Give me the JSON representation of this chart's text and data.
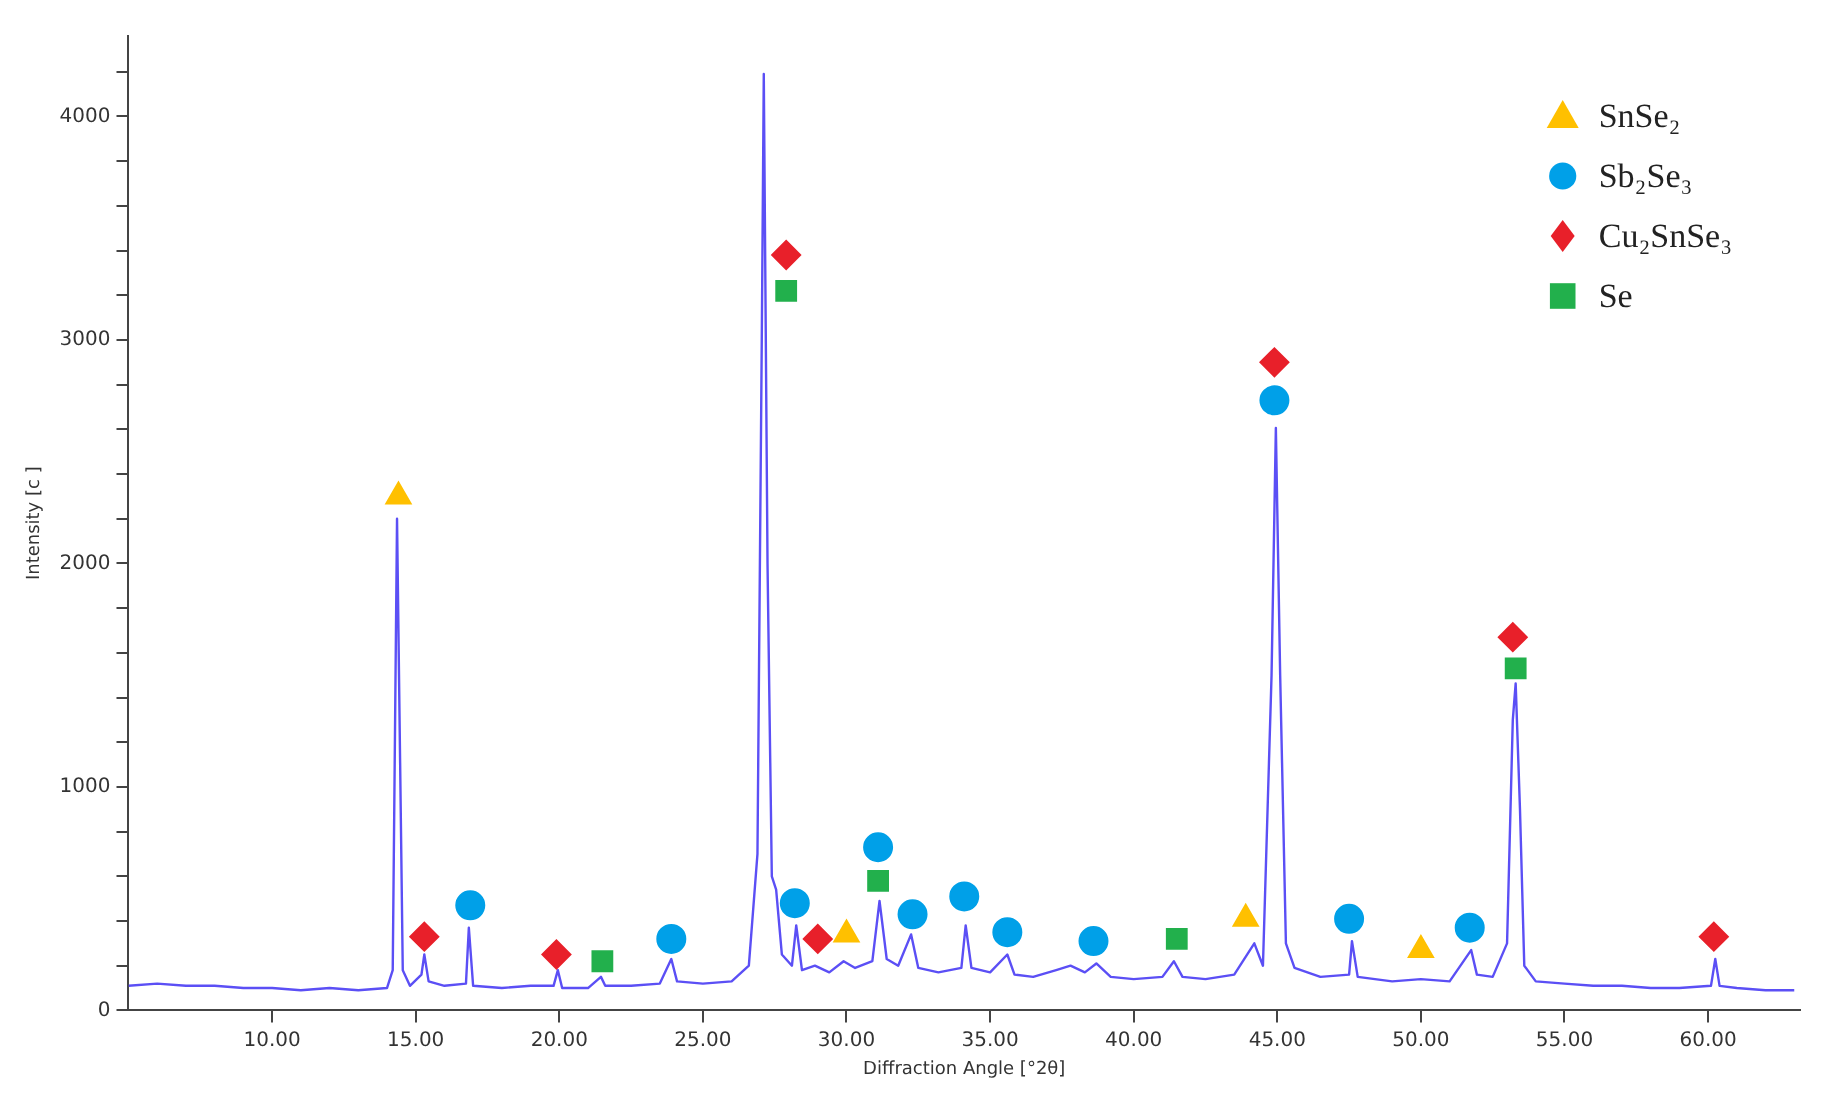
{
  "chart_data": {
    "type": "line",
    "xlabel": "Diffraction Angle [°2θ]",
    "ylabel": "Intensity [c ]",
    "xlim": [
      5,
      63.2
    ],
    "ylim": [
      0,
      4360
    ],
    "xticks": [
      {
        "value": 10,
        "label": "10.00"
      },
      {
        "value": 15,
        "label": "15.00"
      },
      {
        "value": 20,
        "label": "20.00"
      },
      {
        "value": 25,
        "label": "25.00"
      },
      {
        "value": 30,
        "label": "30.00"
      },
      {
        "value": 35,
        "label": "35.00"
      },
      {
        "value": 40,
        "label": "40.00"
      },
      {
        "value": 45,
        "label": "45.00"
      },
      {
        "value": 50,
        "label": "50.00"
      },
      {
        "value": 55,
        "label": "55.00"
      },
      {
        "value": 60,
        "label": "60.00"
      }
    ],
    "yticks": [
      0,
      {
        "value": 200,
        "label": null
      },
      {
        "value": 400,
        "label": null
      },
      {
        "value": 600,
        "label": null
      },
      {
        "value": 800,
        "label": null
      },
      1000,
      {
        "value": 1200,
        "label": null
      },
      {
        "value": 1400,
        "label": null
      },
      {
        "value": 1600,
        "label": null
      },
      {
        "value": 1800,
        "label": null
      },
      2000,
      {
        "value": 2200,
        "label": null
      },
      {
        "value": 2400,
        "label": null
      },
      {
        "value": 2600,
        "label": null
      },
      {
        "value": 2800,
        "label": null
      },
      3000,
      {
        "value": 3200,
        "label": null
      },
      {
        "value": 3400,
        "label": null
      },
      {
        "value": 3600,
        "label": null
      },
      {
        "value": 3800,
        "label": null
      },
      4000,
      {
        "value": 4200,
        "label": null
      }
    ],
    "grid": false,
    "legend": "top right",
    "series": [
      {
        "type": "line",
        "color": "#5b4ff5",
        "marker": "none",
        "line_style": "solid",
        "x": [
          5.0,
          6.0,
          7.0,
          8.0,
          9.0,
          10.0,
          11.0,
          12.0,
          13.0,
          14.0,
          14.2,
          14.35,
          14.55,
          14.8,
          15.2,
          15.3,
          15.45,
          16.0,
          16.75,
          16.85,
          17.0,
          18.0,
          19.0,
          19.8,
          19.95,
          20.1,
          21.0,
          21.45,
          21.6,
          22.5,
          23.5,
          23.9,
          24.1,
          25.0,
          26.0,
          26.6,
          26.9,
          27.05,
          27.12,
          27.25,
          27.4,
          27.55,
          27.75,
          28.1,
          28.25,
          28.45,
          28.9,
          29.4,
          29.9,
          30.3,
          30.9,
          31.15,
          31.4,
          31.8,
          32.25,
          32.5,
          33.2,
          34.0,
          34.15,
          34.35,
          35.0,
          35.6,
          35.85,
          36.5,
          37.3,
          37.8,
          38.3,
          38.7,
          39.2,
          40.0,
          41.0,
          41.4,
          41.7,
          42.5,
          43.5,
          44.2,
          44.5,
          44.8,
          44.95,
          45.1,
          45.3,
          45.6,
          46.5,
          47.5,
          47.6,
          47.8,
          49.0,
          50.0,
          51.0,
          51.75,
          51.95,
          52.5,
          53.0,
          53.2,
          53.3,
          53.45,
          53.6,
          54.0,
          55.0,
          56.0,
          57.0,
          58.0,
          59.0,
          60.1,
          60.25,
          60.4,
          61.0,
          62.0,
          63.0
        ],
        "values": [
          110,
          120,
          110,
          110,
          100,
          100,
          90,
          100,
          90,
          100,
          180,
          2200,
          180,
          110,
          160,
          250,
          130,
          110,
          120,
          370,
          110,
          100,
          110,
          110,
          180,
          100,
          100,
          150,
          110,
          110,
          120,
          230,
          130,
          120,
          130,
          200,
          700,
          3000,
          4190,
          2000,
          600,
          540,
          250,
          200,
          380,
          180,
          200,
          170,
          220,
          190,
          220,
          490,
          230,
          200,
          340,
          190,
          170,
          190,
          380,
          190,
          170,
          250,
          160,
          150,
          180,
          200,
          170,
          210,
          150,
          140,
          150,
          220,
          150,
          140,
          160,
          300,
          200,
          1500,
          2606,
          1500,
          300,
          190,
          150,
          160,
          310,
          150,
          130,
          140,
          130,
          270,
          160,
          150,
          300,
          1300,
          1463,
          900,
          200,
          130,
          120,
          110,
          110,
          100,
          100,
          110,
          230,
          110,
          100,
          90,
          90
        ]
      },
      {
        "type": "scatter",
        "name": "SnSe₂",
        "color": "#ffc000",
        "marker": "triangle",
        "x": [
          14.4,
          30.0,
          43.9,
          50.0
        ],
        "values": [
          2300,
          340,
          410,
          270
        ]
      },
      {
        "type": "scatter",
        "name": "Sb₂Se₃",
        "color": "#00a0e8",
        "marker": "circle",
        "x": [
          16.9,
          23.9,
          28.2,
          31.1,
          32.3,
          34.1,
          35.6,
          38.6,
          44.9,
          47.5,
          51.7
        ],
        "values": [
          470,
          320,
          480,
          730,
          430,
          510,
          350,
          310,
          2730,
          410,
          370
        ]
      },
      {
        "type": "scatter",
        "name": "Cu₂SnSe₃",
        "color": "#e8202a",
        "marker": "diamond",
        "x": [
          15.3,
          19.9,
          27.9,
          29.0,
          44.9,
          53.2,
          60.2
        ],
        "values": [
          330,
          250,
          3380,
          320,
          2900,
          1670,
          330
        ]
      },
      {
        "type": "scatter",
        "name": "Se",
        "color": "#22b04c",
        "marker": "square",
        "x": [
          21.5,
          27.9,
          31.1,
          41.5,
          53.3
        ],
        "values": [
          220,
          3220,
          580,
          320,
          1530
        ]
      }
    ]
  }
}
